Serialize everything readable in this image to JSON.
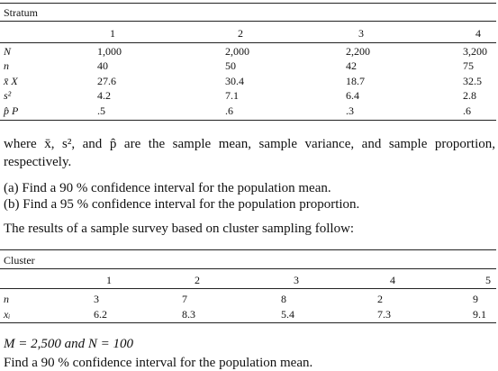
{
  "table1": {
    "caption": "Stratum",
    "header": [
      "1",
      "2",
      "3",
      "4"
    ],
    "rows": [
      [
        "N",
        "1,000",
        "2,000",
        "2,200",
        "3,200"
      ],
      [
        "n",
        "40",
        "50",
        "42",
        "75"
      ],
      [
        "x̄ X",
        "27.6",
        "30.4",
        "18.7",
        "32.5"
      ],
      [
        "s²",
        "4.2",
        "7.1",
        "6.4",
        "2.8"
      ],
      [
        "p̂ P",
        ".5",
        ".6",
        ".3",
        ".6"
      ]
    ]
  },
  "text": {
    "definition": "where x̄, s², and p̂ are the sample mean, sample variance, and sample proportion, respectively.",
    "part_a": "(a) Find a 90 % confidence interval for the population mean.",
    "part_b": "(b) Find a 95 % confidence interval for the population proportion.",
    "intro": "The results of a sample survey based on cluster sampling follow:"
  },
  "table2": {
    "caption": "Cluster",
    "header": [
      "1",
      "2",
      "3",
      "4",
      "5"
    ],
    "rows": [
      [
        "n",
        "3",
        "7",
        "8",
        "2",
        "9"
      ],
      [
        "xᵢ",
        "6.2",
        "8.3",
        "5.4",
        "7.3",
        "9.1"
      ]
    ]
  },
  "given": "M = 2,500 and N = 100",
  "question": "Find a 90 % confidence interval for the population mean."
}
